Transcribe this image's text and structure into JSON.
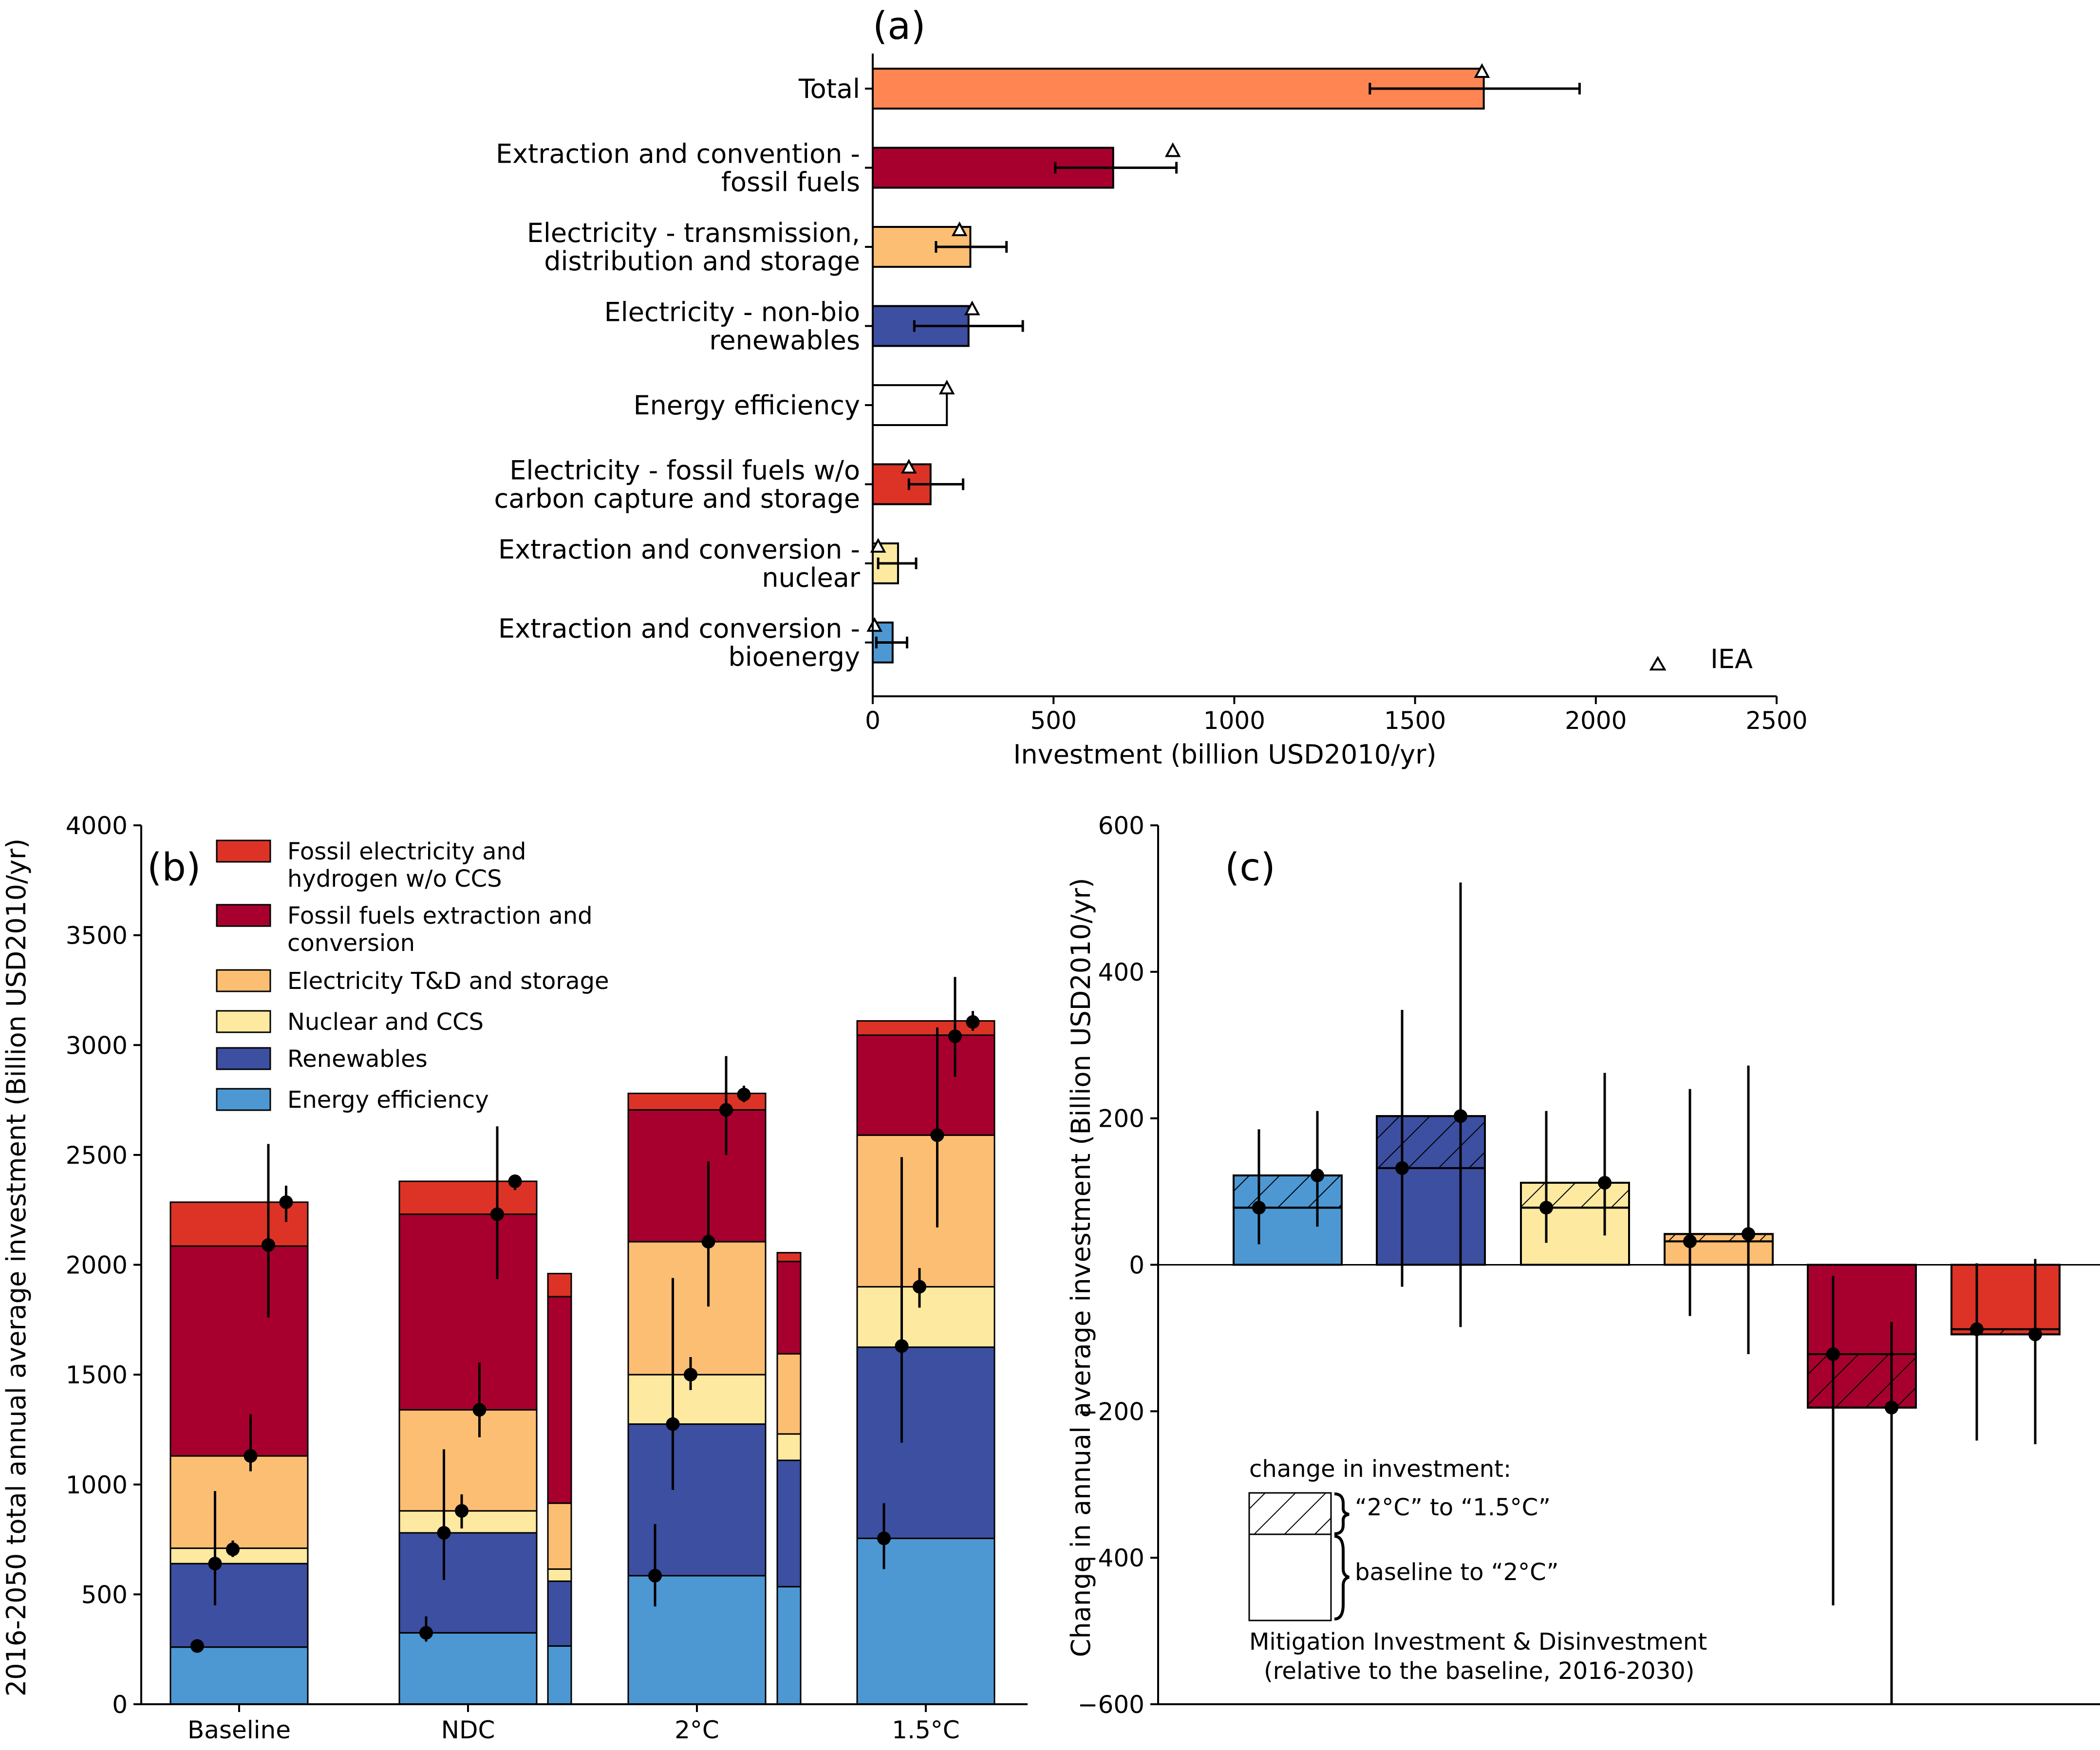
{
  "colors": {
    "total": "#ff8552",
    "fossil_extraction": "#a8002e",
    "td_storage": "#fcbe72",
    "renewables": "#3d4fa1",
    "fossil_electricity": "#dd3327",
    "nuclear": "#fde9a0",
    "energy_efficiency": "#4d98d3",
    "bioenergy": "#4d98d3",
    "white": "#ffffff"
  },
  "chart_data": [
    {
      "panel": "(a)",
      "type": "bar",
      "orientation": "horizontal",
      "xlabel": "Investment (billion USD2010/yr)",
      "xlim": [
        0,
        2500
      ],
      "xticks": [
        "0",
        "500",
        "1000",
        "1500",
        "2000",
        "2500"
      ],
      "legend": {
        "entries": [
          "IEA"
        ],
        "placement": "bottom-right",
        "marker": "triangle"
      },
      "bars": [
        {
          "label_lines": [
            "Total"
          ],
          "value": 1690,
          "err_low": 1375,
          "err_high": 1955,
          "iea": 1685,
          "color": "total"
        },
        {
          "label_lines": [
            "Extraction and convention -",
            "fossil fuels"
          ],
          "value": 665,
          "err_low": 505,
          "err_high": 840,
          "iea": 830,
          "color": "fossil_extraction"
        },
        {
          "label_lines": [
            "Electricity - transmission,",
            "distribution and storage"
          ],
          "value": 270,
          "err_low": 175,
          "err_high": 370,
          "iea": 240,
          "color": "td_storage"
        },
        {
          "label_lines": [
            "Electricity - non-bio",
            "renewables"
          ],
          "value": 265,
          "err_low": 115,
          "err_high": 415,
          "iea": 275,
          "color": "renewables"
        },
        {
          "label_lines": [
            "Energy efficiency"
          ],
          "value": 205,
          "err_low": null,
          "err_high": null,
          "iea": 205,
          "color": "white"
        },
        {
          "label_lines": [
            "Electricity - fossil fuels w/o",
            "carbon capture and storage"
          ],
          "value": 160,
          "err_low": 100,
          "err_high": 250,
          "iea": 100,
          "color": "fossil_electricity"
        },
        {
          "label_lines": [
            "Extraction and conversion -",
            "nuclear"
          ],
          "value": 70,
          "err_low": 15,
          "err_high": 120,
          "iea": 15,
          "color": "nuclear"
        },
        {
          "label_lines": [
            "Extraction and conversion -",
            "bioenergy"
          ],
          "value": 55,
          "err_low": 10,
          "err_high": 95,
          "iea": 5,
          "color": "bioenergy"
        }
      ]
    },
    {
      "panel": "(b)",
      "type": "bar",
      "stacked": true,
      "ylabel": "2016-2050 total annual average investment (Billion USD2010/yr)",
      "ylim": [
        0,
        4000
      ],
      "yticks": [
        "0",
        "500",
        "1000",
        "1500",
        "2000",
        "2500",
        "3000",
        "3500",
        "4000"
      ],
      "categories": [
        "Baseline",
        "NDC",
        "2°C",
        "1.5°C"
      ],
      "legend": {
        "placement": "top-left",
        "entries": [
          {
            "lines": [
              "Fossil electricity and",
              "hydrogen w/o CCS"
            ],
            "color": "fossil_electricity"
          },
          {
            "lines": [
              "Fossil fuels extraction and",
              "conversion"
            ],
            "color": "fossil_extraction"
          },
          {
            "lines": [
              "Electricity T&D and storage"
            ],
            "color": "td_storage"
          },
          {
            "lines": [
              "Nuclear and CCS"
            ],
            "color": "nuclear"
          },
          {
            "lines": [
              "Renewables"
            ],
            "color": "renewables"
          },
          {
            "lines": [
              "Energy efficiency"
            ],
            "color": "energy_efficiency"
          }
        ]
      },
      "series_order": [
        "energy_efficiency",
        "renewables",
        "nuclear",
        "td_storage",
        "fossil_extraction",
        "fossil_electricity"
      ],
      "bars": [
        {
          "category": "Baseline",
          "segments": [
            260,
            380,
            70,
            420,
            955,
            200
          ],
          "points": [
            {
              "value": 265,
              "low": null,
              "high": null
            },
            {
              "value": 640,
              "low": 450,
              "high": 970
            },
            {
              "value": 705,
              "low": 670,
              "high": 745
            },
            {
              "value": 1130,
              "low": 1060,
              "high": 1320
            },
            {
              "value": 2090,
              "low": 1760,
              "high": 2550
            },
            {
              "value": 2285,
              "low": 2195,
              "high": 2360
            }
          ]
        },
        {
          "category": "NDC",
          "segments": [
            325,
            455,
            100,
            460,
            890,
            150
          ],
          "points": [
            {
              "value": 325,
              "low": 285,
              "high": 400
            },
            {
              "value": 780,
              "low": 565,
              "high": 1160
            },
            {
              "value": 880,
              "low": 800,
              "high": 955
            },
            {
              "value": 1340,
              "low": 1215,
              "high": 1555
            },
            {
              "value": 2230,
              "low": 1935,
              "high": 2630
            },
            {
              "value": 2380,
              "low": 2340,
              "high": 2410
            }
          ]
        },
        {
          "category": "2°C",
          "segments": [
            585,
            690,
            225,
            605,
            600,
            75
          ],
          "points": [
            {
              "value": 585,
              "low": 445,
              "high": 820
            },
            {
              "value": 1275,
              "low": 975,
              "high": 1940
            },
            {
              "value": 1500,
              "low": 1430,
              "high": 1580
            },
            {
              "value": 2105,
              "low": 1810,
              "high": 2470
            },
            {
              "value": 2705,
              "low": 2500,
              "high": 2950
            },
            {
              "value": 2775,
              "low": 2740,
              "high": 2815
            }
          ]
        },
        {
          "category": "1.5°C",
          "segments": [
            755,
            870,
            275,
            690,
            455,
            65
          ],
          "points": [
            {
              "value": 755,
              "low": 615,
              "high": 915
            },
            {
              "value": 1630,
              "low": 1190,
              "high": 2490
            },
            {
              "value": 1900,
              "low": 1805,
              "high": 1985
            },
            {
              "value": 2590,
              "low": 2170,
              "high": 3080
            },
            {
              "value": 3040,
              "low": 2855,
              "high": 3310
            },
            {
              "value": 3105,
              "low": 3065,
              "high": 3155
            }
          ]
        }
      ],
      "thin_bars": [
        {
          "after_category": "NDC",
          "segments": [
            265,
            295,
            55,
            300,
            940,
            105
          ]
        },
        {
          "after_category": "2°C",
          "segments": [
            535,
            575,
            120,
            365,
            420,
            40
          ]
        }
      ]
    },
    {
      "panel": "(c)",
      "type": "bar",
      "ylabel": "Change in annual average investment (Billion USD2010/yr)",
      "ylim": [
        -600,
        600
      ],
      "yticks": [
        "600",
        "400",
        "200",
        "0",
        "−200",
        "−400",
        "−600"
      ],
      "groups": [
        {
          "color": "energy_efficiency",
          "baseline_to_2C": 78,
          "to_1_5C": 122,
          "pts": [
            {
              "value": 78,
              "low": 28,
              "high": 185
            },
            {
              "value": 122,
              "low": 52,
              "high": 210
            }
          ]
        },
        {
          "color": "renewables",
          "baseline_to_2C": 132,
          "to_1_5C": 203,
          "pts": [
            {
              "value": 132,
              "low": -30,
              "high": 348
            },
            {
              "value": 203,
              "low": -85,
              "high": 522
            }
          ]
        },
        {
          "color": "nuclear",
          "baseline_to_2C": 78,
          "to_1_5C": 112,
          "pts": [
            {
              "value": 78,
              "low": 30,
              "high": 210
            },
            {
              "value": 112,
              "low": 40,
              "high": 262
            }
          ]
        },
        {
          "color": "td_storage",
          "baseline_to_2C": 32,
          "to_1_5C": 42,
          "pts": [
            {
              "value": 32,
              "low": -70,
              "high": 240
            },
            {
              "value": 42,
              "low": -122,
              "high": 272
            }
          ]
        },
        {
          "color": "fossil_extraction",
          "baseline_to_2C": -122,
          "to_1_5C": -195,
          "pts": [
            {
              "value": -122,
              "low": -465,
              "high": -15
            },
            {
              "value": -195,
              "low": -600,
              "high": -78
            }
          ]
        },
        {
          "color": "fossil_electricity",
          "baseline_to_2C": -88,
          "to_1_5C": -95,
          "pts": [
            {
              "value": -88,
              "low": -240,
              "high": 2
            },
            {
              "value": -95,
              "low": -245,
              "high": 8
            }
          ]
        }
      ],
      "annotation": {
        "heading": "change in investment:",
        "hatched_label": "“2°C” to “1.5°C”",
        "plain_label": "baseline to “2°C”",
        "footer_line1": "Mitigation Investment & Disinvestment",
        "footer_line2": "(relative to the baseline, 2016-2030)"
      }
    }
  ]
}
